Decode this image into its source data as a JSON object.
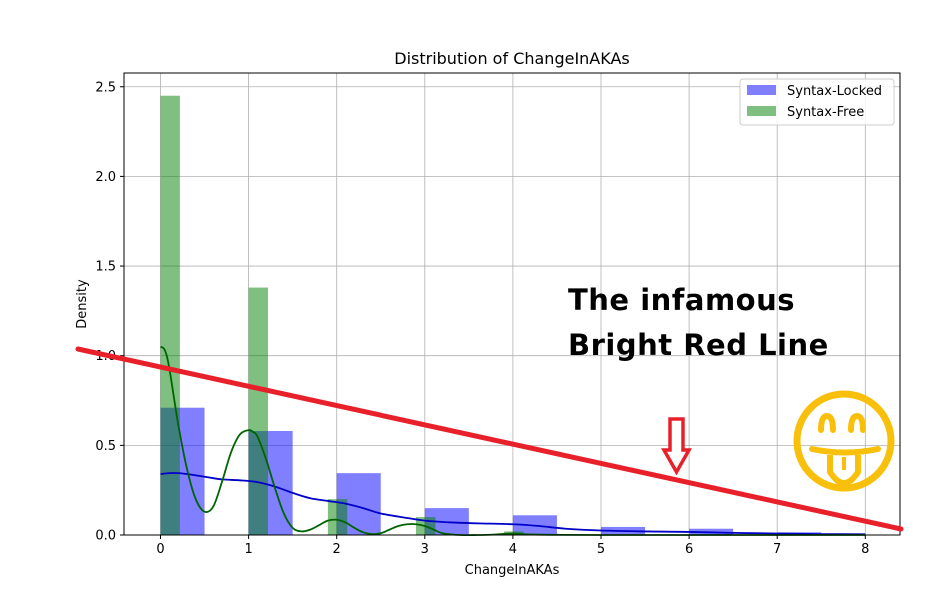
{
  "chart_data": {
    "type": "bar",
    "title": "Distribution of ChangeInAKAs",
    "xlabel": "ChangeInAKAs",
    "ylabel": "Density",
    "xlim": [
      -0.4,
      8.4
    ],
    "ylim": [
      0,
      2.6
    ],
    "xticks": [
      0,
      1,
      2,
      3,
      4,
      5,
      6,
      7,
      8
    ],
    "yticks": [
      0.0,
      0.5,
      1.0,
      1.5,
      2.0,
      2.5
    ],
    "xtick_labels": [
      "0",
      "1",
      "2",
      "3",
      "4",
      "5",
      "6",
      "7",
      "8"
    ],
    "ytick_labels": [
      "0.0",
      "0.5",
      "1.0",
      "1.5",
      "2.0",
      "2.5"
    ],
    "grid": true,
    "legend_position": "top-right",
    "series": [
      {
        "name": "Syntax-Locked",
        "color": "#0000ff",
        "bin_width": 0.5,
        "bin_starts": [
          0,
          1,
          2,
          3,
          4,
          5,
          6,
          7
        ],
        "values": [
          0.71,
          0.58,
          0.345,
          0.15,
          0.11,
          0.045,
          0.035,
          0.015
        ],
        "kde_x": [
          0,
          0.1,
          0.2,
          0.3,
          0.5,
          0.7,
          0.9,
          1.1,
          1.3,
          1.5,
          1.7,
          1.9,
          2.1,
          2.3,
          2.5,
          2.8,
          3.0,
          3.3,
          3.6,
          4.0,
          4.3,
          4.6,
          5.0,
          5.5,
          6.0,
          6.5,
          7.0,
          7.5,
          8.0
        ],
        "kde_y": [
          0.34,
          0.345,
          0.345,
          0.34,
          0.325,
          0.31,
          0.305,
          0.295,
          0.27,
          0.235,
          0.205,
          0.19,
          0.175,
          0.15,
          0.12,
          0.095,
          0.08,
          0.07,
          0.065,
          0.06,
          0.05,
          0.035,
          0.025,
          0.02,
          0.017,
          0.012,
          0.008,
          0.005,
          0.004
        ]
      },
      {
        "name": "Syntax-Free",
        "color": "#008000",
        "bin_width": 0.22,
        "bin_starts": [
          0,
          1,
          1.9,
          2.9,
          3.9
        ],
        "values": [
          2.45,
          1.38,
          0.2,
          0.1,
          0.02
        ],
        "kde_x": [
          0,
          0.05,
          0.1,
          0.2,
          0.3,
          0.4,
          0.5,
          0.6,
          0.7,
          0.8,
          0.9,
          1.0,
          1.05,
          1.1,
          1.2,
          1.3,
          1.4,
          1.5,
          1.6,
          1.7,
          1.8,
          1.9,
          2.0,
          2.1,
          2.2,
          2.3,
          2.4,
          2.5,
          2.6,
          2.7,
          2.8,
          2.9,
          3.0,
          3.1,
          3.2,
          3.4,
          3.6,
          3.8,
          4.0,
          4.2,
          4.5,
          5.0,
          6.0,
          7.0,
          8.0
        ],
        "kde_y": [
          1.05,
          1.03,
          0.93,
          0.62,
          0.37,
          0.2,
          0.13,
          0.16,
          0.3,
          0.46,
          0.56,
          0.585,
          0.575,
          0.55,
          0.42,
          0.26,
          0.12,
          0.04,
          0.02,
          0.03,
          0.055,
          0.08,
          0.085,
          0.07,
          0.04,
          0.015,
          0.005,
          0.01,
          0.03,
          0.05,
          0.06,
          0.06,
          0.05,
          0.03,
          0.01,
          0.0,
          0.0,
          0.003,
          0.008,
          0.003,
          0.001,
          0.0,
          0.0,
          0.0,
          0.0
        ]
      }
    ],
    "annotation": {
      "text_lines": [
        "The infamous",
        "Bright Red Line"
      ],
      "line_color": "#e8202a",
      "arrow_color": "#e8202a",
      "smiley_color": "#f8c00a"
    }
  }
}
